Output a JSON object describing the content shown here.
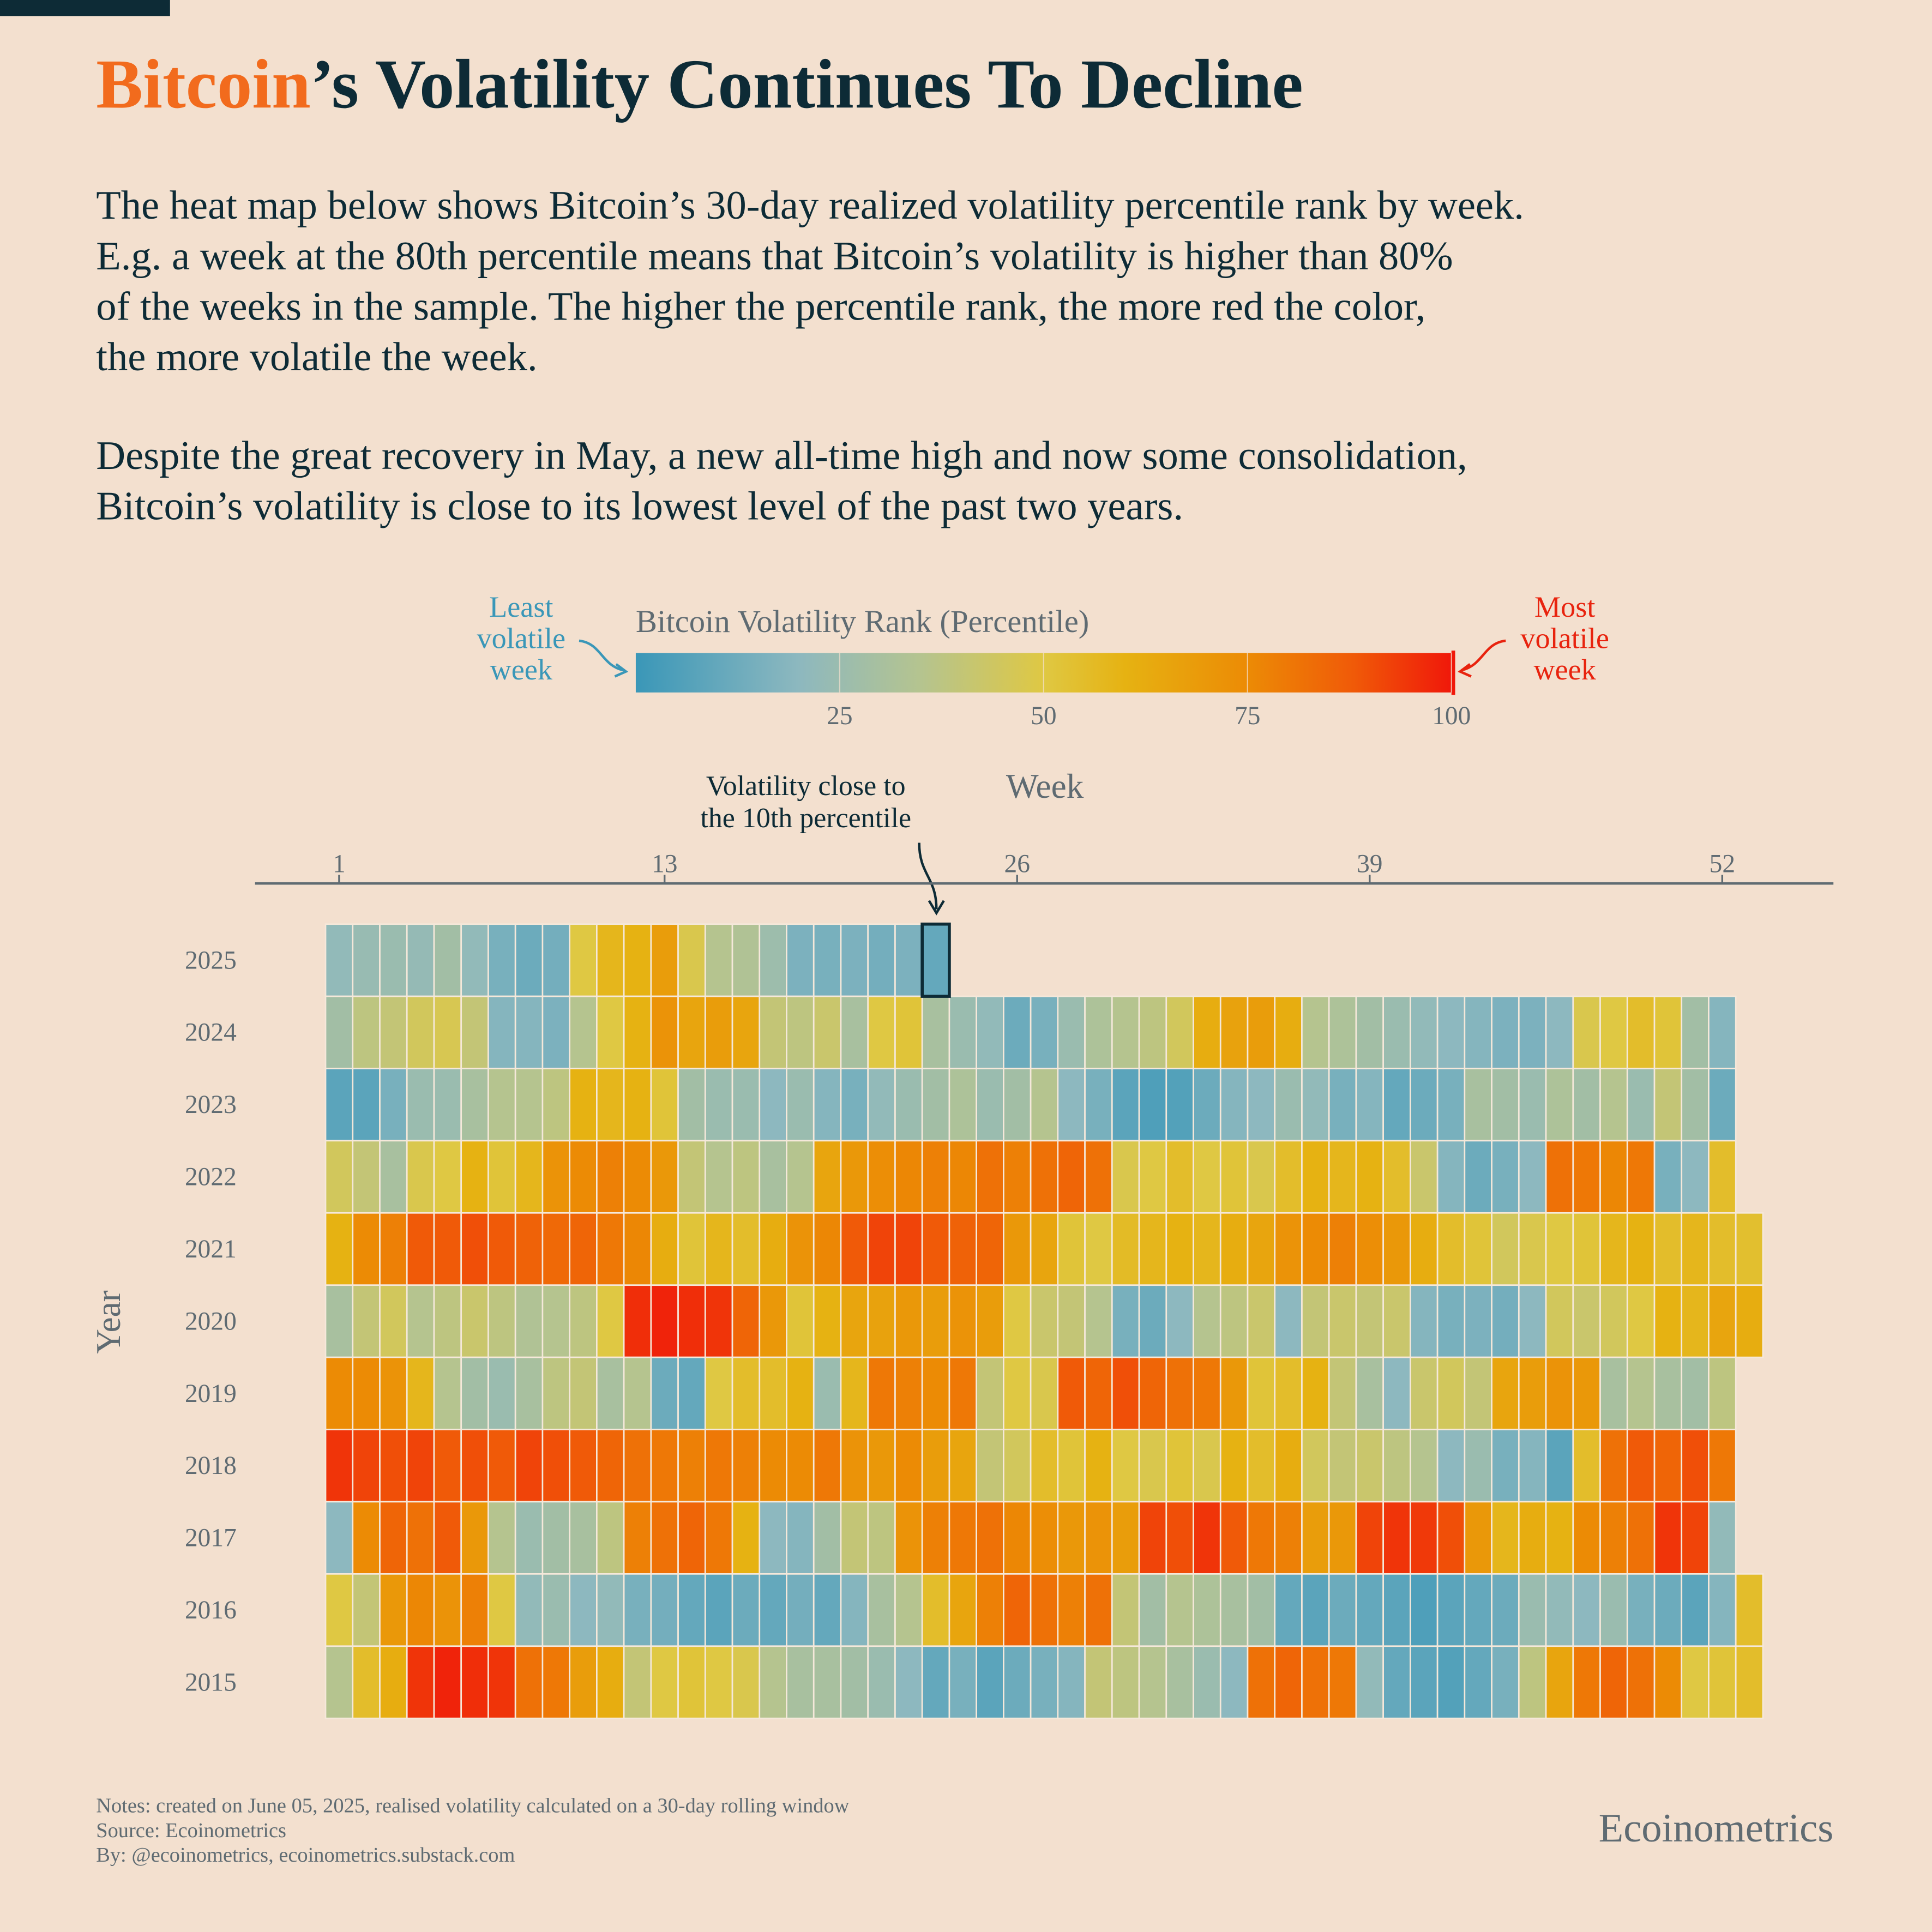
{
  "chart_data": {
    "type": "heatmap",
    "title_highlight": "Bitcoin",
    "title_rest": "’s Volatility Continues To Decline",
    "description": [
      [
        "The heat map below shows Bitcoin’s 30-day realized volatility percentile rank by week.",
        "E.g. a week at the 80th percentile means that Bitcoin’s volatility is higher than 80%",
        "of the weeks in the sample. The higher the percentile rank, the more red the color,",
        "the more volatile the week."
      ],
      [
        "Despite the great recovery in May, a new all-time high and now some consolidation,",
        "Bitcoin’s volatility is close to its lowest level of the past two years."
      ]
    ],
    "colorbar": {
      "title": "Bitcoin Volatility Rank (Percentile)",
      "lim": [
        0,
        100
      ],
      "ticks": [
        25,
        50,
        75,
        100
      ],
      "low_label": [
        "Least",
        "volatile",
        "week"
      ],
      "high_label": [
        "Most",
        "volatile",
        "week"
      ]
    },
    "colorscale": [
      [
        0,
        "#3a97b8"
      ],
      [
        20,
        "#8db8bf"
      ],
      [
        35,
        "#b5c48f"
      ],
      [
        50,
        "#dfc843"
      ],
      [
        60,
        "#e6b212"
      ],
      [
        75,
        "#ec8b05"
      ],
      [
        88,
        "#f05a08"
      ],
      [
        100,
        "#f0180a"
      ]
    ],
    "annotation": [
      "Volatility close to",
      "the 10th percentile"
    ],
    "x_label": "Week",
    "y_label": "Year",
    "xlim": [
      -2.1,
      56.1
    ],
    "xticks": [
      1,
      13,
      26,
      39,
      52
    ],
    "series": [
      {
        "name": "2025",
        "values": [
          22,
          24,
          25,
          23,
          28,
          22,
          15,
          12,
          14,
          50,
          58,
          60,
          68,
          48,
          35,
          33,
          26,
          16,
          15,
          16,
          14,
          16,
          10
        ]
      },
      {
        "name": "2024",
        "values": [
          28,
          38,
          40,
          45,
          47,
          40,
          18,
          18,
          16,
          35,
          50,
          60,
          72,
          65,
          68,
          65,
          40,
          38,
          42,
          30,
          50,
          52,
          30,
          25,
          22,
          12,
          15,
          25,
          32,
          35,
          38,
          45,
          62,
          66,
          68,
          62,
          35,
          32,
          28,
          25,
          22,
          20,
          18,
          16,
          16,
          20,
          48,
          50,
          55,
          52,
          28,
          18
        ]
      },
      {
        "name": "2023",
        "values": [
          8,
          8,
          15,
          25,
          25,
          30,
          35,
          35,
          38,
          60,
          58,
          60,
          52,
          28,
          25,
          25,
          20,
          25,
          18,
          15,
          22,
          25,
          28,
          32,
          25,
          28,
          35,
          20,
          15,
          8,
          5,
          6,
          12,
          18,
          20,
          25,
          22,
          15,
          18,
          10,
          12,
          15,
          30,
          28,
          25,
          32,
          28,
          35,
          25,
          40,
          28,
          12
        ]
      },
      {
        "name": "2022",
        "values": [
          45,
          40,
          30,
          48,
          50,
          60,
          52,
          58,
          72,
          75,
          78,
          75,
          70,
          40,
          35,
          38,
          30,
          35,
          65,
          70,
          74,
          76,
          78,
          76,
          82,
          78,
          82,
          85,
          82,
          48,
          50,
          55,
          50,
          52,
          48,
          55,
          60,
          58,
          60,
          55,
          42,
          18,
          12,
          15,
          20,
          82,
          80,
          76,
          80,
          15,
          20,
          55
        ]
      },
      {
        "name": "2021",
        "values": [
          60,
          75,
          78,
          88,
          88,
          90,
          88,
          86,
          84,
          85,
          80,
          76,
          62,
          52,
          58,
          55,
          62,
          72,
          76,
          88,
          92,
          92,
          88,
          86,
          85,
          70,
          65,
          52,
          50,
          56,
          58,
          60,
          58,
          62,
          65,
          72,
          75,
          78,
          74,
          70,
          62,
          55,
          52,
          45,
          48,
          50,
          52,
          58,
          60,
          55,
          58,
          55,
          54
        ]
      },
      {
        "name": "2020",
        "values": [
          30,
          40,
          45,
          35,
          38,
          42,
          38,
          33,
          35,
          38,
          50,
          96,
          98,
          96,
          95,
          85,
          70,
          52,
          60,
          65,
          66,
          70,
          68,
          72,
          68,
          50,
          42,
          40,
          35,
          15,
          12,
          20,
          35,
          38,
          42,
          20,
          40,
          42,
          40,
          42,
          18,
          15,
          16,
          14,
          20,
          45,
          42,
          45,
          50,
          60,
          58,
          65,
          62
        ]
      },
      {
        "name": "2019",
        "values": [
          75,
          75,
          72,
          58,
          35,
          28,
          25,
          30,
          38,
          40,
          30,
          35,
          12,
          10,
          50,
          55,
          55,
          60,
          25,
          58,
          80,
          78,
          75,
          80,
          40,
          50,
          48,
          88,
          85,
          90,
          85,
          82,
          80,
          70,
          52,
          55,
          60,
          40,
          30,
          20,
          42,
          45,
          40,
          65,
          68,
          72,
          70,
          30,
          35,
          30,
          28,
          38
        ]
      },
      {
        "name": "2018",
        "values": [
          95,
          92,
          90,
          92,
          88,
          90,
          88,
          92,
          90,
          88,
          85,
          82,
          80,
          78,
          80,
          78,
          75,
          75,
          80,
          72,
          70,
          75,
          68,
          65,
          40,
          45,
          55,
          52,
          60,
          50,
          48,
          52,
          48,
          60,
          55,
          62,
          45,
          40,
          42,
          38,
          35,
          20,
          25,
          15,
          18,
          8,
          55,
          82,
          88,
          85,
          90,
          80
        ]
      },
      {
        "name": "2017",
        "values": [
          20,
          75,
          85,
          82,
          88,
          70,
          35,
          25,
          28,
          30,
          38,
          78,
          82,
          85,
          80,
          60,
          20,
          18,
          28,
          40,
          38,
          72,
          78,
          80,
          82,
          76,
          74,
          70,
          72,
          68,
          92,
          90,
          95,
          88,
          80,
          78,
          68,
          70,
          92,
          95,
          94,
          90,
          70,
          58,
          62,
          60,
          75,
          78,
          82,
          95,
          92,
          22
        ]
      },
      {
        "name": "2016",
        "values": [
          50,
          40,
          70,
          76,
          72,
          78,
          50,
          22,
          25,
          20,
          22,
          15,
          14,
          10,
          8,
          12,
          10,
          14,
          10,
          18,
          30,
          35,
          55,
          65,
          78,
          85,
          82,
          78,
          82,
          40,
          28,
          35,
          32,
          30,
          28,
          10,
          8,
          12,
          10,
          8,
          5,
          8,
          10,
          12,
          25,
          22,
          20,
          25,
          15,
          12,
          8,
          18,
          55
        ]
      },
      {
        "name": "2015",
        "values": [
          35,
          55,
          62,
          95,
          98,
          96,
          95,
          82,
          80,
          68,
          62,
          40,
          50,
          52,
          50,
          48,
          35,
          30,
          30,
          28,
          25,
          20,
          10,
          15,
          8,
          12,
          15,
          18,
          40,
          38,
          35,
          30,
          25,
          20,
          82,
          85,
          82,
          80,
          22,
          10,
          8,
          6,
          10,
          15,
          38,
          65,
          80,
          85,
          82,
          75,
          50,
          52,
          55
        ]
      }
    ],
    "notes": [
      "Notes: created on June 05, 2025, realised volatility calculated on a 30-day rolling window",
      "Source: Ecoinometrics",
      "By: @ecoinometrics, ecoinometrics.substack.com"
    ],
    "brand": "Ecoinometrics"
  }
}
